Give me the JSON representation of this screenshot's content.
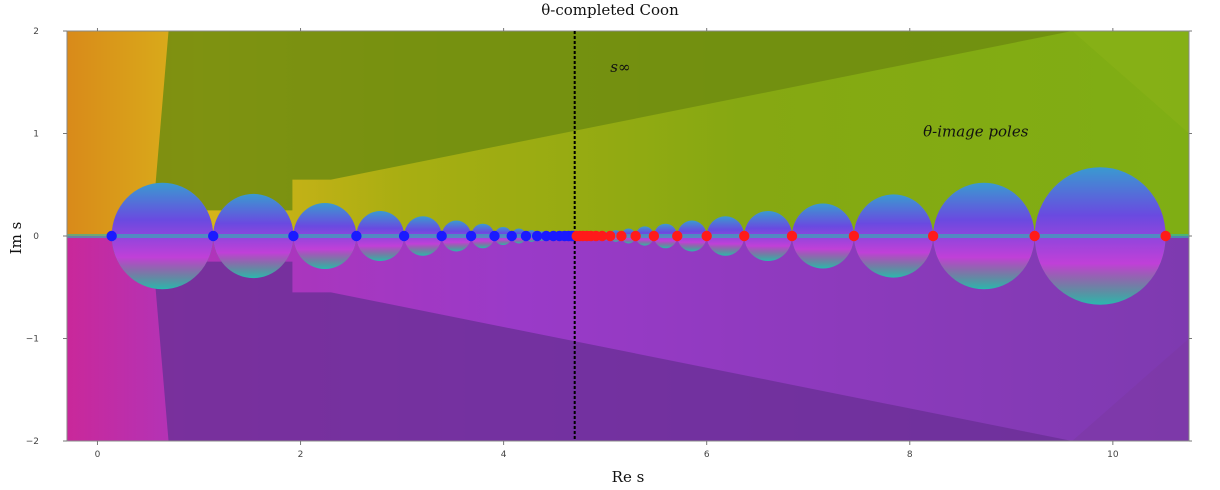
{
  "chart_data": {
    "type": "heatmap",
    "title": "θ-completed Coon",
    "xlabel": "Re s",
    "ylabel": "Im s",
    "xlim": [
      -0.3,
      10.75
    ],
    "ylim": [
      -2.0,
      2.0
    ],
    "xticks": [
      0,
      2,
      4,
      6,
      8,
      10
    ],
    "yticks": [
      -2,
      -1,
      0,
      1,
      2
    ],
    "grid": false,
    "s_infinity_line_x": 4.7,
    "annotations": [
      {
        "text": "s∞",
        "x": 5.15,
        "y": 1.6
      },
      {
        "text": "θ-image poles",
        "x": 8.65,
        "y": 0.97
      }
    ],
    "series": [
      {
        "color": "#1a1aff",
        "x": [
          0.14,
          1.14,
          1.93,
          2.55,
          3.02,
          3.39,
          3.68,
          3.91,
          4.08,
          4.22,
          4.33,
          4.42,
          4.49,
          4.55,
          4.6,
          4.64,
          4.67,
          4.69
        ]
      },
      {
        "color": "#ff1a1a",
        "x": [
          4.72,
          4.75,
          4.78,
          4.82,
          4.86,
          4.91,
          4.97,
          5.05,
          5.16,
          5.3,
          5.48,
          5.71,
          6.0,
          6.37,
          6.84,
          7.45,
          8.23,
          9.23,
          10.52
        ]
      }
    ]
  }
}
